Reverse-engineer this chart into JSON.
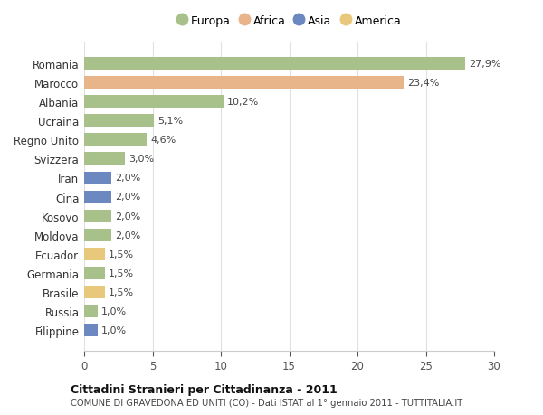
{
  "countries": [
    "Romania",
    "Marocco",
    "Albania",
    "Ucraina",
    "Regno Unito",
    "Svizzera",
    "Iran",
    "Cina",
    "Kosovo",
    "Moldova",
    "Ecuador",
    "Germania",
    "Brasile",
    "Russia",
    "Filippine"
  ],
  "values": [
    27.9,
    23.4,
    10.2,
    5.1,
    4.6,
    3.0,
    2.0,
    2.0,
    2.0,
    2.0,
    1.5,
    1.5,
    1.5,
    1.0,
    1.0
  ],
  "continents": [
    "Europa",
    "Africa",
    "Europa",
    "Europa",
    "Europa",
    "Europa",
    "Asia",
    "Asia",
    "Europa",
    "Europa",
    "America",
    "Europa",
    "America",
    "Europa",
    "Asia"
  ],
  "colors": {
    "Europa": "#a8c08a",
    "Africa": "#e8b48a",
    "Asia": "#6b89c0",
    "America": "#e8c87a"
  },
  "legend_order": [
    "Europa",
    "Africa",
    "Asia",
    "America"
  ],
  "title": "Cittadini Stranieri per Cittadinanza - 2011",
  "subtitle": "COMUNE DI GRAVEDONA ED UNITI (CO) - Dati ISTAT al 1° gennaio 2011 - TUTTITALIA.IT",
  "xlim": [
    0,
    30
  ],
  "xticks": [
    0,
    5,
    10,
    15,
    20,
    25,
    30
  ],
  "bg_color": "#ffffff",
  "grid_color": "#e0e0e0",
  "bar_height": 0.65
}
